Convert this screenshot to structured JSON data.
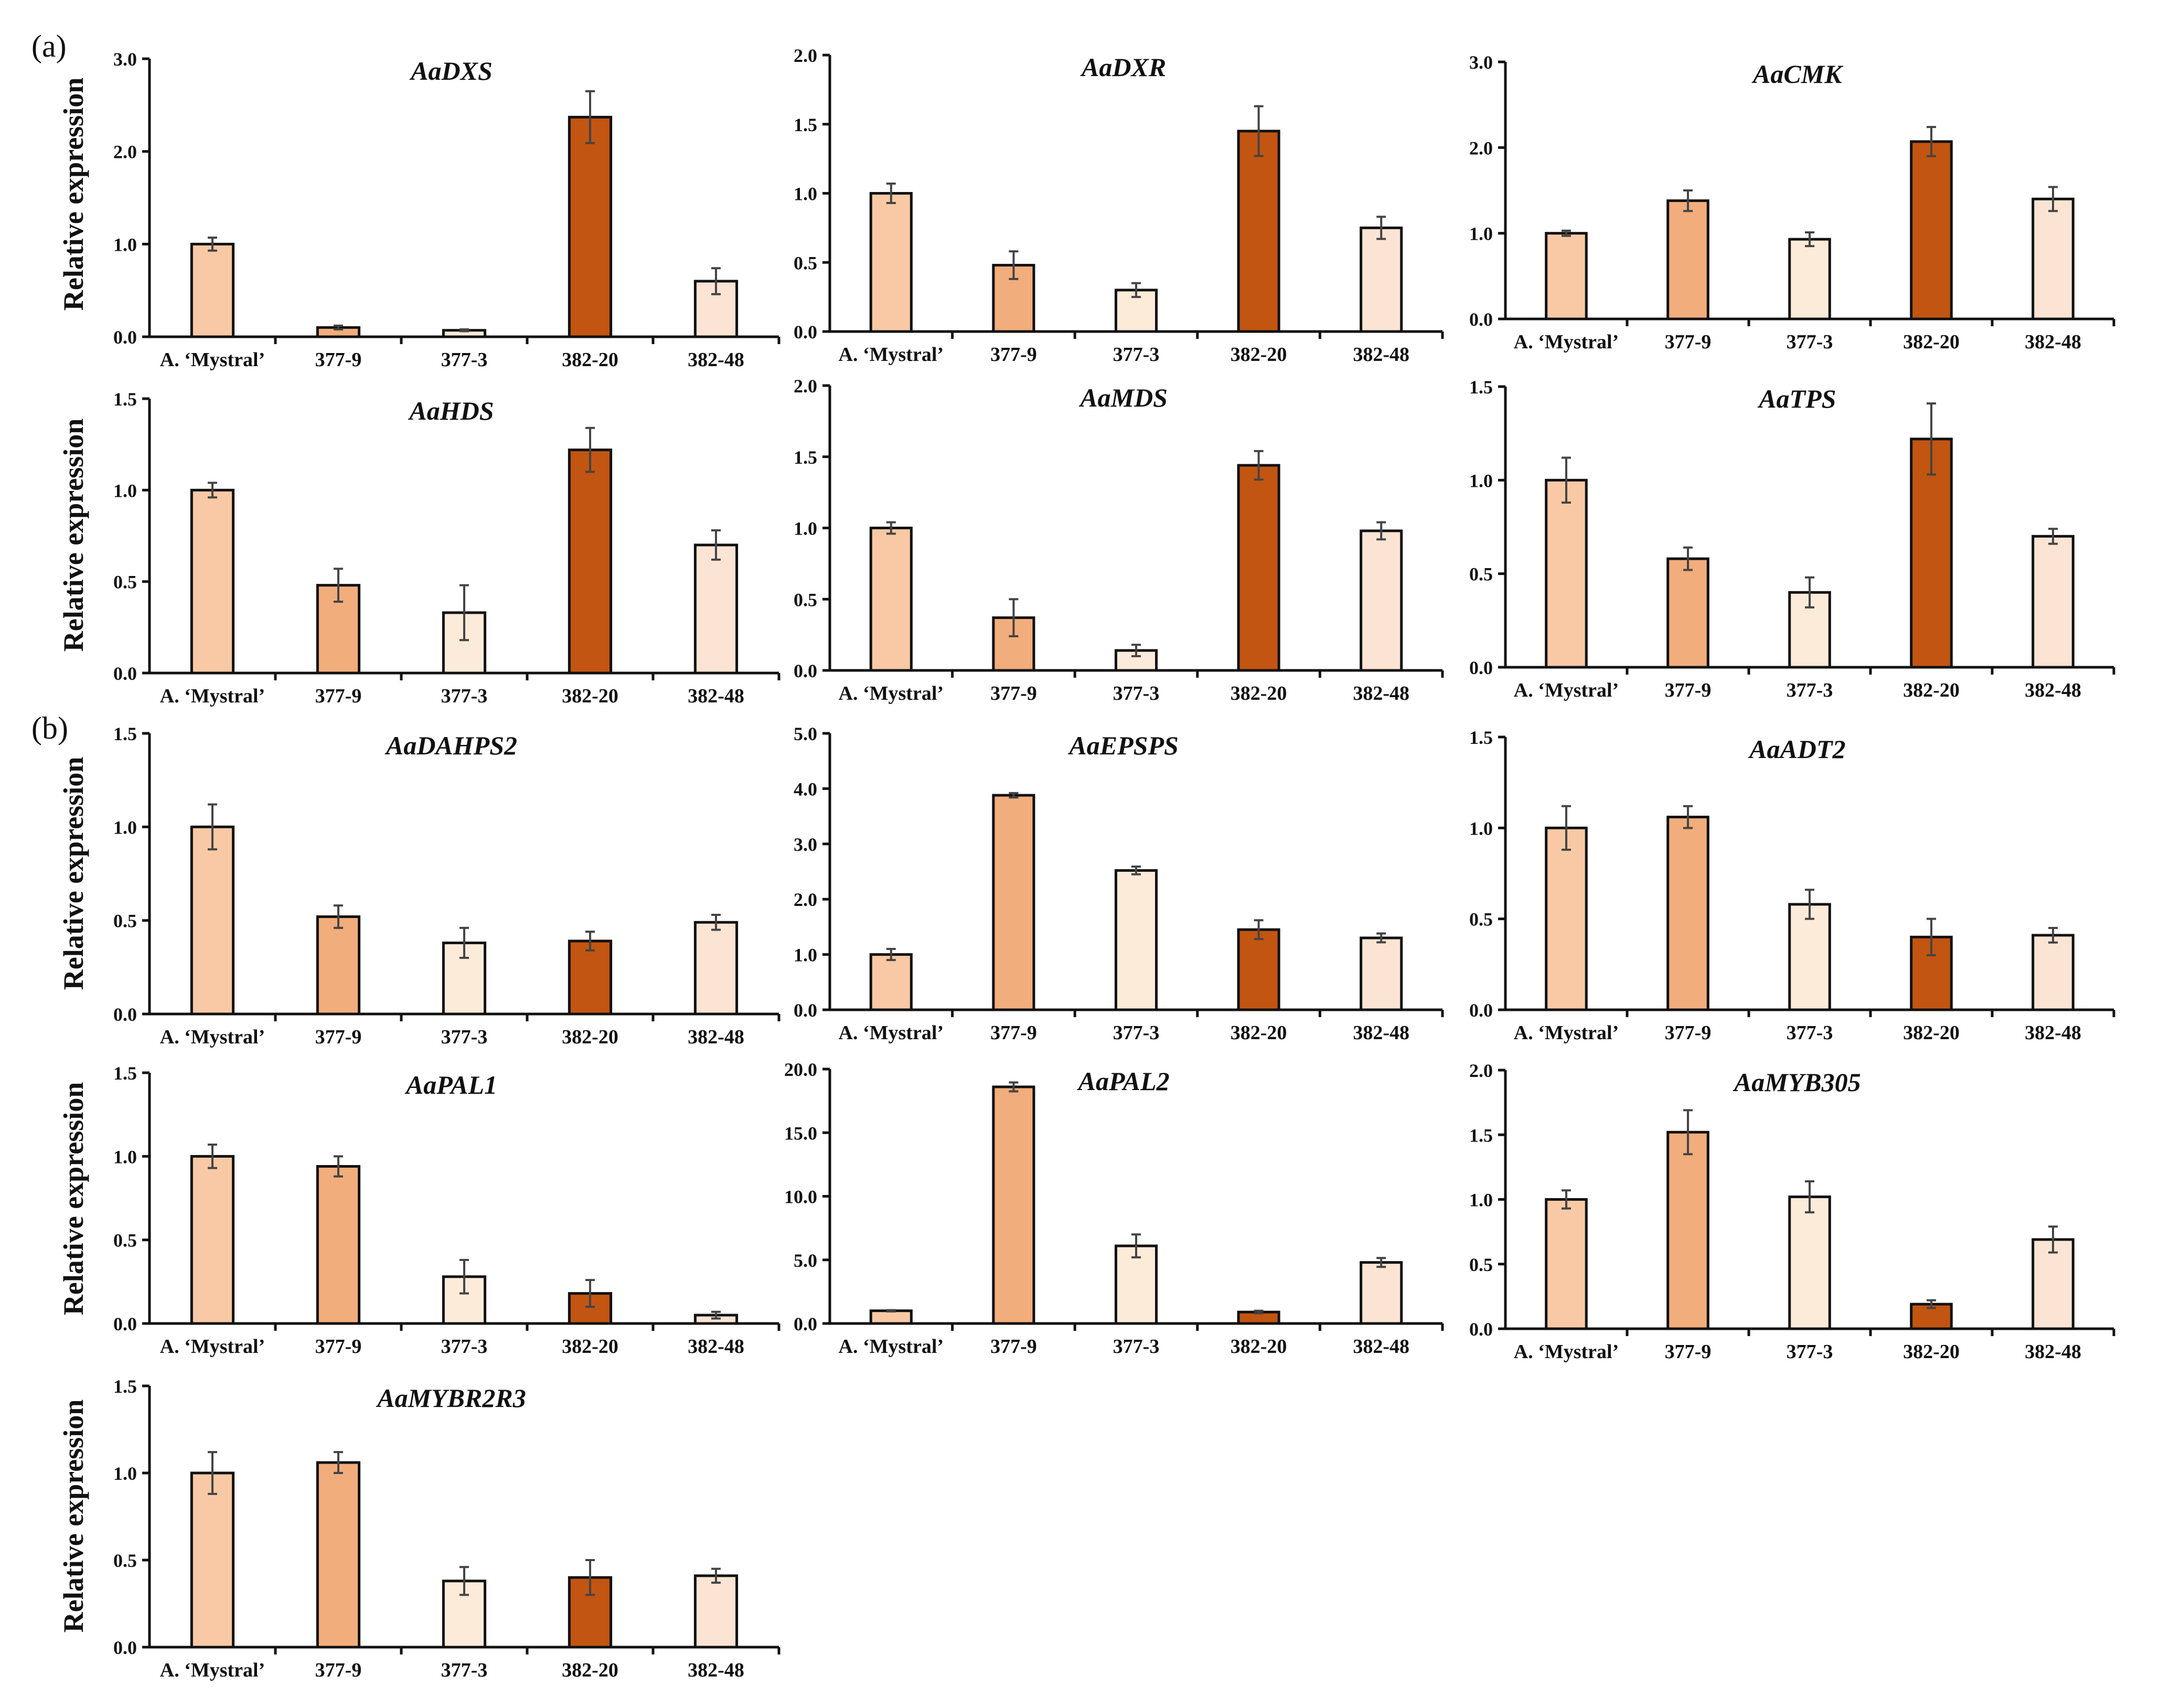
{
  "panel_labels": [
    "(a)",
    "(b)"
  ],
  "chart_data": [
    {
      "type": "bar",
      "panel": "a",
      "title": "AaDXS",
      "ylabel": "Relative expression",
      "ylim": [
        0,
        3.0
      ],
      "yticks": [
        "0.0",
        "1.0",
        "2.0",
        "3.0"
      ],
      "categories": [
        "A. ‘Mystral’",
        "377-9",
        "377-3",
        "382-20",
        "382-48"
      ],
      "values": [
        1.0,
        0.1,
        0.07,
        2.37,
        0.6
      ],
      "errors": [
        0.07,
        0.02,
        0.01,
        0.28,
        0.14
      ]
    },
    {
      "type": "bar",
      "panel": "a",
      "title": "AaDXR",
      "ylabel": "",
      "ylim": [
        0,
        2.0
      ],
      "yticks": [
        "0.0",
        "0.5",
        "1.0",
        "1.5",
        "2.0"
      ],
      "categories": [
        "A. ‘Mystral’",
        "377-9",
        "377-3",
        "382-20",
        "382-48"
      ],
      "values": [
        1.0,
        0.48,
        0.3,
        1.45,
        0.75
      ],
      "errors": [
        0.07,
        0.1,
        0.05,
        0.18,
        0.08
      ]
    },
    {
      "type": "bar",
      "panel": "a",
      "title": "AaCMK",
      "ylabel": "",
      "ylim": [
        0,
        3.0
      ],
      "yticks": [
        "0.0",
        "1.0",
        "2.0",
        "3.0"
      ],
      "categories": [
        "A. ‘Mystral’",
        "377-9",
        "377-3",
        "382-20",
        "382-48"
      ],
      "values": [
        1.0,
        1.38,
        0.93,
        2.07,
        1.4
      ],
      "errors": [
        0.03,
        0.12,
        0.08,
        0.17,
        0.14
      ]
    },
    {
      "type": "bar",
      "panel": "a",
      "title": "AaHDS",
      "ylabel": "Relative expression",
      "ylim": [
        0,
        1.5
      ],
      "yticks": [
        "0.0",
        "0.5",
        "1.0",
        "1.5"
      ],
      "categories": [
        "A. ‘Mystral’",
        "377-9",
        "377-3",
        "382-20",
        "382-48"
      ],
      "values": [
        1.0,
        0.48,
        0.33,
        1.22,
        0.7
      ],
      "errors": [
        0.04,
        0.09,
        0.15,
        0.12,
        0.08
      ]
    },
    {
      "type": "bar",
      "panel": "a",
      "title": "AaMDS",
      "ylabel": "",
      "ylim": [
        0,
        2.0
      ],
      "yticks": [
        "0.0",
        "0.5",
        "1.0",
        "1.5",
        "2.0"
      ],
      "categories": [
        "A. ‘Mystral’",
        "377-9",
        "377-3",
        "382-20",
        "382-48"
      ],
      "values": [
        1.0,
        0.37,
        0.14,
        1.44,
        0.98
      ],
      "errors": [
        0.04,
        0.13,
        0.04,
        0.1,
        0.06
      ]
    },
    {
      "type": "bar",
      "panel": "a",
      "title": "AaTPS",
      "ylabel": "",
      "ylim": [
        0,
        1.5
      ],
      "yticks": [
        "0.0",
        "0.5",
        "1.0",
        "1.5"
      ],
      "categories": [
        "A. ‘Mystral’",
        "377-9",
        "377-3",
        "382-20",
        "382-48"
      ],
      "values": [
        1.0,
        0.58,
        0.4,
        1.22,
        0.7
      ],
      "errors": [
        0.12,
        0.06,
        0.08,
        0.19,
        0.04
      ]
    },
    {
      "type": "bar",
      "panel": "b",
      "title": "AaDAHPS2",
      "ylabel": "Relative expression",
      "ylim": [
        0,
        1.5
      ],
      "yticks": [
        "0.0",
        "0.5",
        "1.0",
        "1.5"
      ],
      "categories": [
        "A. ‘Mystral’",
        "377-9",
        "377-3",
        "382-20",
        "382-48"
      ],
      "values": [
        1.0,
        0.52,
        0.38,
        0.39,
        0.49
      ],
      "errors": [
        0.12,
        0.06,
        0.08,
        0.05,
        0.04
      ]
    },
    {
      "type": "bar",
      "panel": "b",
      "title": "AaEPSPS",
      "ylabel": "",
      "ylim": [
        0,
        5.0
      ],
      "yticks": [
        "0.0",
        "1.0",
        "2.0",
        "3.0",
        "4.0",
        "5.0"
      ],
      "categories": [
        "A. ‘Mystral’",
        "377-9",
        "377-3",
        "382-20",
        "382-48"
      ],
      "values": [
        1.0,
        3.88,
        2.52,
        1.45,
        1.3
      ],
      "errors": [
        0.1,
        0.04,
        0.07,
        0.17,
        0.08
      ]
    },
    {
      "type": "bar",
      "panel": "b",
      "title": "AaADT2",
      "ylabel": "",
      "ylim": [
        0,
        1.5
      ],
      "yticks": [
        "0.0",
        "0.5",
        "1.0",
        "1.5"
      ],
      "categories": [
        "A. ‘Mystral’",
        "377-9",
        "377-3",
        "382-20",
        "382-48"
      ],
      "values": [
        1.0,
        1.06,
        0.58,
        0.4,
        0.41
      ],
      "errors": [
        0.12,
        0.06,
        0.08,
        0.1,
        0.04
      ]
    },
    {
      "type": "bar",
      "panel": "b",
      "title": "AaPAL1",
      "ylabel": "Relative expression",
      "ylim": [
        0,
        1.5
      ],
      "yticks": [
        "0.0",
        "0.5",
        "1.0",
        "1.5"
      ],
      "categories": [
        "A. ‘Mystral’",
        "377-9",
        "377-3",
        "382-20",
        "382-48"
      ],
      "values": [
        1.0,
        0.94,
        0.28,
        0.18,
        0.05
      ],
      "errors": [
        0.07,
        0.06,
        0.1,
        0.08,
        0.02
      ]
    },
    {
      "type": "bar",
      "panel": "b",
      "title": "AaPAL2",
      "ylabel": "",
      "ylim": [
        0,
        20.0
      ],
      "yticks": [
        "0.0",
        "5.0",
        "10.0",
        "15.0",
        "20.0"
      ],
      "categories": [
        "A. ‘Mystral’",
        "377-9",
        "377-3",
        "382-20",
        "382-48"
      ],
      "values": [
        1.0,
        18.6,
        6.1,
        0.9,
        4.8
      ],
      "errors": [
        0.05,
        0.35,
        0.9,
        0.1,
        0.35
      ]
    },
    {
      "type": "bar",
      "panel": "b",
      "title": "AaMYB305",
      "ylabel": "",
      "ylim": [
        0,
        2.0
      ],
      "yticks": [
        "0.0",
        "0.5",
        "1.0",
        "1.5",
        "2.0"
      ],
      "categories": [
        "A. ‘Mystral’",
        "377-9",
        "377-3",
        "382-20",
        "382-48"
      ],
      "values": [
        1.0,
        1.52,
        1.02,
        0.19,
        0.69
      ],
      "errors": [
        0.07,
        0.17,
        0.12,
        0.03,
        0.1
      ]
    },
    {
      "type": "bar",
      "panel": "b",
      "title": "AaMYBR2R3",
      "ylabel": "Relative expression",
      "ylim": [
        0,
        1.5
      ],
      "yticks": [
        "0.0",
        "0.5",
        "1.0",
        "1.5"
      ],
      "categories": [
        "A. ‘Mystral’",
        "377-9",
        "377-3",
        "382-20",
        "382-48"
      ],
      "values": [
        1.0,
        1.06,
        0.38,
        0.4,
        0.41
      ],
      "errors": [
        0.12,
        0.06,
        0.08,
        0.1,
        0.04
      ]
    }
  ],
  "colors": {
    "bars": [
      "#f8c9a4",
      "#f2ad7c",
      "#fdebd9",
      "#c25511",
      "#fbe4d3"
    ],
    "axis": "#111111",
    "error": "#444444"
  }
}
